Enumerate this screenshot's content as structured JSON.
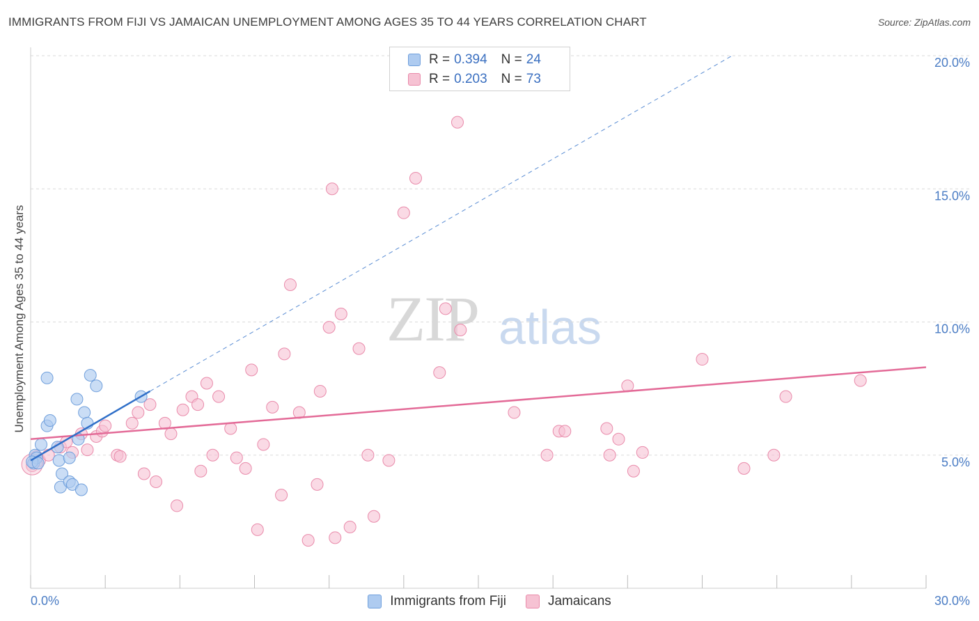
{
  "header": {
    "title": "IMMIGRANTS FROM FIJI VS JAMAICAN UNEMPLOYMENT AMONG AGES 35 TO 44 YEARS CORRELATION CHART",
    "source": "Source: ZipAtlas.com"
  },
  "watermark": {
    "zip": "ZIP",
    "atlas": "atlas"
  },
  "legend_top": {
    "rows": [
      {
        "r_label": "R =",
        "r_value": "0.394",
        "n_label": "N =",
        "n_value": "24"
      },
      {
        "r_label": "R =",
        "r_value": "0.203",
        "n_label": "N =",
        "n_value": "73"
      }
    ]
  },
  "legend_bottom": {
    "fiji": "Immigrants from Fiji",
    "jamaicans": "Jamaicans"
  },
  "colors": {
    "fiji_fill": "#aecbf0",
    "fiji_stroke": "#6f9fdc",
    "fiji_line": "#2f6fc8",
    "jam_fill": "#f6c2d3",
    "jam_stroke": "#e98aaa",
    "jam_line": "#e36a97",
    "grid": "#d9d9d9",
    "axis_text": "#4a7cc4"
  },
  "chart_data": {
    "type": "scatter",
    "title": "IMMIGRANTS FROM FIJI VS JAMAICAN UNEMPLOYMENT AMONG AGES 35 TO 44 YEARS CORRELATION CHART",
    "xlabel": "",
    "ylabel": "Unemployment Among Ages 35 to 44 years",
    "xlim": [
      0,
      30
    ],
    "ylim": [
      0,
      20
    ],
    "x_tick_labels": [
      "0.0%",
      "30.0%"
    ],
    "y_ticks": [
      5,
      10,
      15,
      20
    ],
    "y_tick_labels": [
      "5.0%",
      "10.0%",
      "15.0%",
      "20.0%"
    ],
    "series": [
      {
        "name": "Immigrants from Fiji",
        "R": 0.394,
        "N": 24,
        "trend": {
          "x0": 0.0,
          "y0": 4.8,
          "x1": 4.0,
          "y1": 7.4,
          "dashed_to_x": 23.5,
          "dashed_to_y": 20.0
        },
        "points": [
          [
            0.1,
            4.7
          ],
          [
            0.15,
            5.0
          ],
          [
            0.2,
            4.9
          ],
          [
            0.35,
            5.4
          ],
          [
            0.55,
            6.1
          ],
          [
            0.65,
            6.3
          ],
          [
            0.9,
            5.3
          ],
          [
            0.95,
            4.8
          ],
          [
            0.55,
            7.9
          ],
          [
            1.0,
            3.8
          ],
          [
            1.05,
            4.3
          ],
          [
            1.3,
            4.0
          ],
          [
            1.3,
            4.9
          ],
          [
            1.4,
            3.9
          ],
          [
            1.55,
            7.1
          ],
          [
            1.6,
            5.6
          ],
          [
            1.7,
            3.7
          ],
          [
            1.8,
            6.6
          ],
          [
            1.9,
            6.2
          ],
          [
            2.0,
            8.0
          ],
          [
            2.2,
            7.6
          ],
          [
            3.7,
            7.2
          ],
          [
            0.05,
            4.75
          ],
          [
            0.25,
            4.7
          ]
        ]
      },
      {
        "name": "Jamaicans",
        "R": 0.203,
        "N": 73,
        "trend": {
          "x0": 0.0,
          "y0": 5.6,
          "x1": 30.0,
          "y1": 8.3
        },
        "points": [
          [
            0.05,
            4.6
          ],
          [
            0.3,
            4.8
          ],
          [
            0.6,
            5.0
          ],
          [
            1.0,
            5.3
          ],
          [
            1.2,
            5.5
          ],
          [
            1.4,
            5.1
          ],
          [
            1.7,
            5.8
          ],
          [
            1.9,
            5.2
          ],
          [
            2.2,
            5.7
          ],
          [
            2.4,
            5.9
          ],
          [
            2.5,
            6.1
          ],
          [
            2.9,
            5.0
          ],
          [
            3.0,
            4.95
          ],
          [
            3.4,
            6.2
          ],
          [
            3.6,
            6.6
          ],
          [
            3.8,
            4.3
          ],
          [
            4.0,
            6.9
          ],
          [
            4.2,
            4.0
          ],
          [
            4.5,
            6.2
          ],
          [
            4.7,
            5.8
          ],
          [
            4.9,
            3.1
          ],
          [
            5.1,
            6.7
          ],
          [
            5.4,
            7.2
          ],
          [
            5.6,
            6.9
          ],
          [
            5.7,
            4.4
          ],
          [
            5.9,
            7.7
          ],
          [
            6.1,
            5.0
          ],
          [
            6.3,
            7.2
          ],
          [
            6.7,
            6.0
          ],
          [
            6.9,
            4.9
          ],
          [
            7.2,
            4.5
          ],
          [
            7.4,
            8.2
          ],
          [
            7.6,
            2.2
          ],
          [
            7.8,
            5.4
          ],
          [
            8.1,
            6.8
          ],
          [
            8.4,
            3.5
          ],
          [
            8.5,
            8.8
          ],
          [
            8.7,
            11.4
          ],
          [
            9.0,
            6.6
          ],
          [
            9.3,
            1.8
          ],
          [
            9.6,
            3.9
          ],
          [
            9.7,
            7.4
          ],
          [
            10.0,
            9.8
          ],
          [
            10.1,
            15.0
          ],
          [
            10.2,
            1.9
          ],
          [
            10.4,
            10.3
          ],
          [
            10.7,
            2.3
          ],
          [
            11.0,
            9.0
          ],
          [
            11.3,
            5.0
          ],
          [
            11.5,
            2.7
          ],
          [
            12.0,
            4.8
          ],
          [
            12.5,
            14.1
          ],
          [
            12.9,
            15.4
          ],
          [
            13.7,
            8.1
          ],
          [
            13.9,
            10.5
          ],
          [
            14.3,
            17.5
          ],
          [
            14.4,
            9.7
          ],
          [
            16.2,
            6.6
          ],
          [
            17.3,
            5.0
          ],
          [
            17.7,
            5.9
          ],
          [
            17.9,
            5.9
          ],
          [
            19.3,
            6.0
          ],
          [
            19.4,
            5.0
          ],
          [
            19.7,
            5.6
          ],
          [
            20.0,
            7.6
          ],
          [
            20.2,
            4.4
          ],
          [
            20.5,
            5.1
          ],
          [
            22.5,
            8.6
          ],
          [
            23.9,
            4.5
          ],
          [
            24.9,
            5.0
          ],
          [
            25.3,
            7.2
          ],
          [
            27.8,
            7.8
          ],
          [
            0.2,
            4.95
          ]
        ]
      }
    ]
  }
}
